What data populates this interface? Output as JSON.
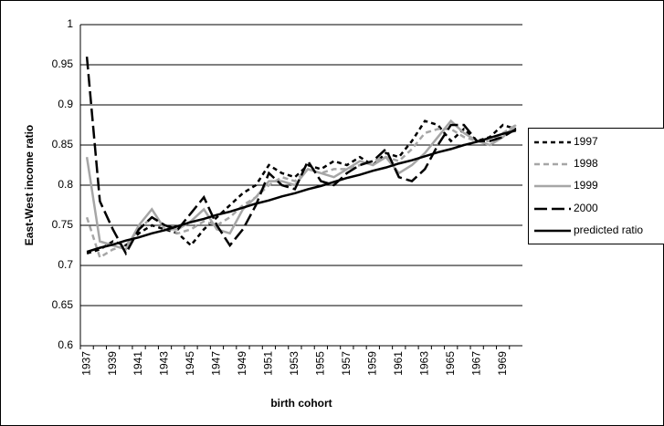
{
  "chart_data": {
    "type": "line",
    "x_label": "birth cohort",
    "y_label": "East-West income ratio",
    "categories": [
      "1937",
      null,
      "1939",
      null,
      "1941",
      null,
      "1943",
      null,
      "1945",
      null,
      "1947",
      null,
      "1949",
      null,
      "1951",
      null,
      "1953",
      null,
      "1955",
      null,
      "1957",
      null,
      "1959",
      null,
      "1961",
      null,
      "1963",
      null,
      "1965",
      null,
      "1967",
      null,
      "1969",
      null
    ],
    "ylim": [
      0.6,
      1
    ],
    "yticks": [
      0.6,
      0.65,
      0.7,
      0.75,
      0.8,
      0.85,
      0.9,
      0.95,
      1
    ],
    "grid": true,
    "legend": "right",
    "series": [
      {
        "name": "1997",
        "color": "#000000",
        "dash": "5,4",
        "values": [
          0.715,
          0.72,
          0.73,
          0.725,
          0.74,
          0.75,
          0.745,
          0.74,
          0.725,
          0.745,
          0.76,
          0.775,
          0.79,
          0.8,
          0.825,
          0.815,
          0.81,
          0.825,
          0.82,
          0.83,
          0.825,
          0.835,
          0.825,
          0.84,
          0.835,
          0.855,
          0.88,
          0.875,
          0.855,
          0.87,
          0.855,
          0.86,
          0.875,
          0.87
        ]
      },
      {
        "name": "1998",
        "color": "#a6a6a6",
        "dash": "6,4",
        "values": [
          0.76,
          0.71,
          0.72,
          0.725,
          0.745,
          0.76,
          0.75,
          0.74,
          0.745,
          0.755,
          0.75,
          0.76,
          0.775,
          0.785,
          0.8,
          0.81,
          0.805,
          0.82,
          0.815,
          0.82,
          0.82,
          0.825,
          0.83,
          0.835,
          0.83,
          0.845,
          0.865,
          0.87,
          0.87,
          0.86,
          0.855,
          0.855,
          0.865,
          0.875
        ]
      },
      {
        "name": "1999",
        "color": "#a6a6a6",
        "dash": "none",
        "values": [
          0.835,
          0.73,
          0.725,
          0.72,
          0.75,
          0.77,
          0.745,
          0.745,
          0.755,
          0.77,
          0.745,
          0.74,
          0.77,
          0.785,
          0.805,
          0.805,
          0.8,
          0.82,
          0.815,
          0.81,
          0.82,
          0.83,
          0.825,
          0.835,
          0.815,
          0.825,
          0.84,
          0.86,
          0.88,
          0.865,
          0.855,
          0.85,
          0.86,
          0.875
        ]
      },
      {
        "name": "2000",
        "color": "#000000",
        "dash": "14,5",
        "values": [
          0.96,
          0.78,
          0.745,
          0.715,
          0.745,
          0.76,
          0.75,
          0.745,
          0.765,
          0.785,
          0.75,
          0.725,
          0.745,
          0.775,
          0.815,
          0.8,
          0.795,
          0.83,
          0.805,
          0.8,
          0.815,
          0.825,
          0.83,
          0.845,
          0.81,
          0.805,
          0.82,
          0.85,
          0.875,
          0.875,
          0.855,
          0.855,
          0.86,
          0.87
        ]
      },
      {
        "name": "predicted ratio",
        "color": "#000000",
        "dash": "none",
        "values": [
          0.717,
          0.722,
          0.726,
          0.731,
          0.735,
          0.74,
          0.744,
          0.749,
          0.754,
          0.758,
          0.763,
          0.767,
          0.772,
          0.777,
          0.781,
          0.786,
          0.79,
          0.795,
          0.799,
          0.804,
          0.809,
          0.813,
          0.818,
          0.822,
          0.827,
          0.831,
          0.836,
          0.841,
          0.845,
          0.85,
          0.854,
          0.859,
          0.864,
          0.868
        ]
      }
    ]
  }
}
